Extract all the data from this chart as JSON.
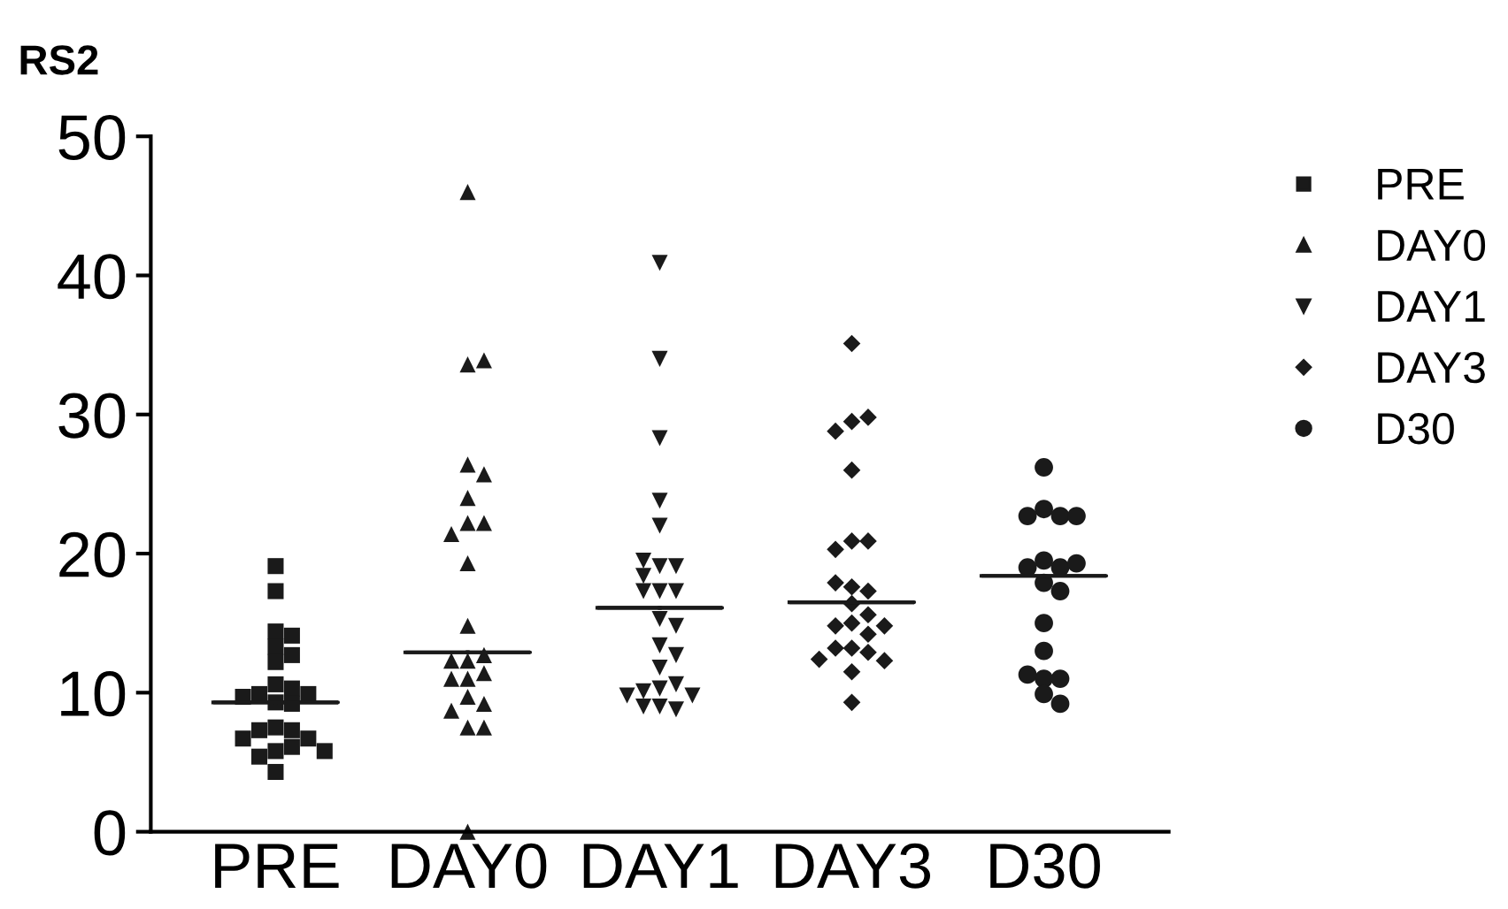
{
  "chart_data": {
    "type": "scatter",
    "title": "RS2",
    "categories": [
      "PRE",
      "DAY0",
      "DAY1",
      "DAY3",
      "D30"
    ],
    "ylim": [
      0,
      50
    ],
    "yticks": [
      0,
      10,
      20,
      30,
      40,
      50
    ],
    "grid": false,
    "legend": "right",
    "series": [
      {
        "name": "PRE",
        "color": "#1a1a1a",
        "marker": "square",
        "x": [
          "PRE",
          "PRE",
          "PRE",
          "PRE",
          "PRE",
          "PRE",
          "PRE",
          "PRE",
          "PRE",
          "PRE",
          "PRE",
          "PRE",
          "PRE",
          "PRE",
          "PRE",
          "PRE",
          "PRE",
          "PRE",
          "PRE",
          "PRE",
          "PRE",
          "PRE",
          "PRE",
          "PRE"
        ],
        "values": [
          19.1,
          17.3,
          14.4,
          13.3,
          14.1,
          12.2,
          12.7,
          10.6,
          10.3,
          9.9,
          9.9,
          9.7,
          9.3,
          9.2,
          7.5,
          7.3,
          7.3,
          6.7,
          6.7,
          5.8,
          6.1,
          5.4,
          5.8,
          4.3
        ]
      },
      {
        "name": "DAY0",
        "color": "#1a1a1a",
        "marker": "triangle",
        "x": [
          "DAY0",
          "DAY0",
          "DAY0",
          "DAY0",
          "DAY0",
          "DAY0",
          "DAY0",
          "DAY0",
          "DAY0",
          "DAY0",
          "DAY0",
          "DAY0",
          "DAY0",
          "DAY0",
          "DAY0",
          "DAY0",
          "DAY0",
          "DAY0",
          "DAY0",
          "DAY0",
          "DAY0",
          "DAY0",
          "DAY0"
        ],
        "values": [
          46.0,
          33.6,
          33.9,
          26.4,
          25.7,
          24.0,
          22.2,
          22.2,
          21.4,
          19.3,
          14.8,
          12.3,
          12.7,
          12.3,
          11.4,
          11.0,
          11.0,
          9.7,
          9.2,
          8.7,
          7.5,
          7.5,
          0.0
        ]
      },
      {
        "name": "DAY1",
        "color": "#1a1a1a",
        "marker": "triangle_down",
        "x": [
          "DAY1",
          "DAY1",
          "DAY1",
          "DAY1",
          "DAY1",
          "DAY1",
          "DAY1",
          "DAY1",
          "DAY1",
          "DAY1",
          "DAY1",
          "DAY1",
          "DAY1",
          "DAY1",
          "DAY1",
          "DAY1",
          "DAY1",
          "DAY1",
          "DAY1",
          "DAY1",
          "DAY1",
          "DAY1",
          "DAY1",
          "DAY1",
          "DAY1"
        ],
        "values": [
          40.9,
          34.0,
          28.3,
          23.8,
          22.0,
          19.1,
          19.1,
          19.5,
          18.4,
          17.3,
          17.3,
          17.3,
          15.3,
          14.8,
          13.4,
          12.7,
          11.8,
          10.3,
          10.6,
          10.1,
          9.8,
          9.8,
          9.0,
          8.8,
          9.0
        ]
      },
      {
        "name": "DAY3",
        "color": "#1a1a1a",
        "marker": "diamond",
        "x": [
          "DAY3",
          "DAY3",
          "DAY3",
          "DAY3",
          "DAY3",
          "DAY3",
          "DAY3",
          "DAY3",
          "DAY3",
          "DAY3",
          "DAY3",
          "DAY3",
          "DAY3",
          "DAY3",
          "DAY3",
          "DAY3",
          "DAY3",
          "DAY3",
          "DAY3",
          "DAY3",
          "DAY3",
          "DAY3",
          "DAY3",
          "DAY3"
        ],
        "values": [
          35.1,
          29.5,
          29.8,
          28.8,
          26.0,
          20.9,
          20.9,
          20.3,
          17.6,
          17.3,
          17.9,
          16.4,
          15.6,
          15.0,
          14.8,
          14.8,
          14.2,
          13.2,
          13.2,
          12.9,
          12.3,
          12.4,
          11.5,
          9.3
        ]
      },
      {
        "name": "D30",
        "color": "#1a1a1a",
        "marker": "circle",
        "x": [
          "D30",
          "D30",
          "D30",
          "D30",
          "D30",
          "D30",
          "D30",
          "D30",
          "D30",
          "D30",
          "D30",
          "D30",
          "D30",
          "D30",
          "D30",
          "D30",
          "D30",
          "D30"
        ],
        "values": [
          26.2,
          23.2,
          22.7,
          22.7,
          22.7,
          19.5,
          19.0,
          19.0,
          19.3,
          17.9,
          17.3,
          15.0,
          13.0,
          11.0,
          11.0,
          11.3,
          9.9,
          9.2
        ]
      },
      {
        "type": "box",
        "color": "#1a1a1a",
        "boxes": [
          {
            "low": 9.3,
            "q1": 9.3,
            "median": 9.3,
            "q3": 9.3,
            "high": 9.3
          },
          {
            "low": 12.9,
            "q1": 12.9,
            "median": 12.9,
            "q3": 12.9,
            "high": 12.9
          },
          {
            "low": 16.1,
            "q1": 16.1,
            "median": 16.1,
            "q3": 16.1,
            "high": 16.1
          },
          {
            "low": 16.5,
            "q1": 16.5,
            "median": 16.5,
            "q3": 16.5,
            "high": 16.5
          },
          {
            "low": 18.4,
            "q1": 18.4,
            "median": 18.4,
            "q3": 18.4,
            "high": 18.4
          }
        ]
      }
    ]
  }
}
